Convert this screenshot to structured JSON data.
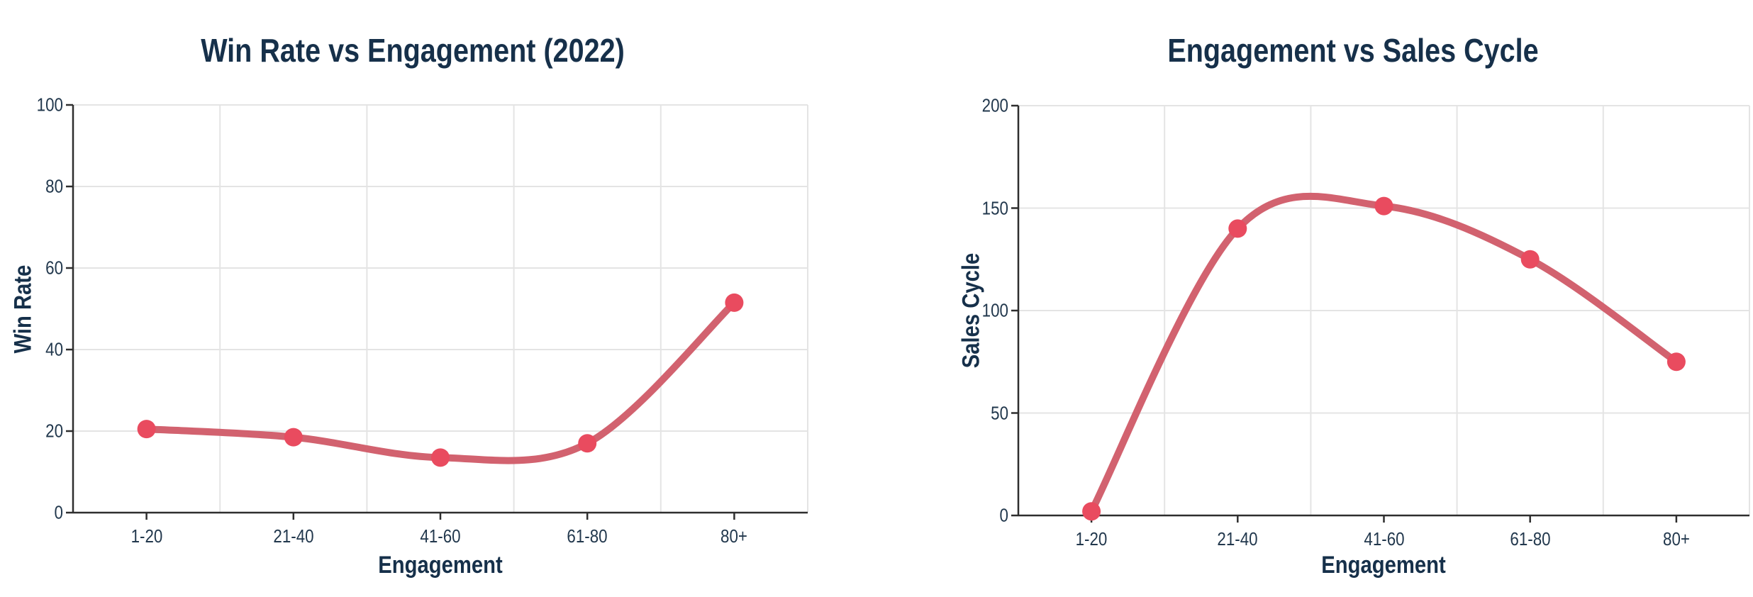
{
  "page": {
    "background_color": "#ffffff"
  },
  "palette": {
    "title_color": "#16304a",
    "tick_color": "#22384d",
    "axis_color": "#2e2e2e",
    "grid_color": "#e4e4e4"
  },
  "chart_data": [
    {
      "type": "line",
      "title": "Win Rate vs Engagement (2022)",
      "xlabel": "Engagement",
      "ylabel": "Win Rate",
      "categories": [
        "1-20",
        "21-40",
        "41-60",
        "61-80",
        "80+"
      ],
      "values": [
        20.5,
        18.5,
        13.5,
        17,
        51.5
      ],
      "ylim": [
        0,
        100
      ],
      "yticks": [
        0,
        20,
        40,
        60,
        80,
        100
      ],
      "grid": true,
      "legend": "none",
      "line_color": "#d2626f",
      "marker_color": "#e94b5f"
    },
    {
      "type": "line",
      "title": "Engagement vs Sales Cycle",
      "xlabel": "Engagement",
      "ylabel": "Sales Cycle",
      "categories": [
        "1-20",
        "21-40",
        "41-60",
        "61-80",
        "80+"
      ],
      "values": [
        2,
        140,
        151,
        125,
        75
      ],
      "ylim": [
        0,
        200
      ],
      "yticks": [
        0,
        50,
        100,
        150,
        200
      ],
      "grid": true,
      "legend": "none",
      "line_color": "#d2626f",
      "marker_color": "#e94b5f"
    }
  ]
}
